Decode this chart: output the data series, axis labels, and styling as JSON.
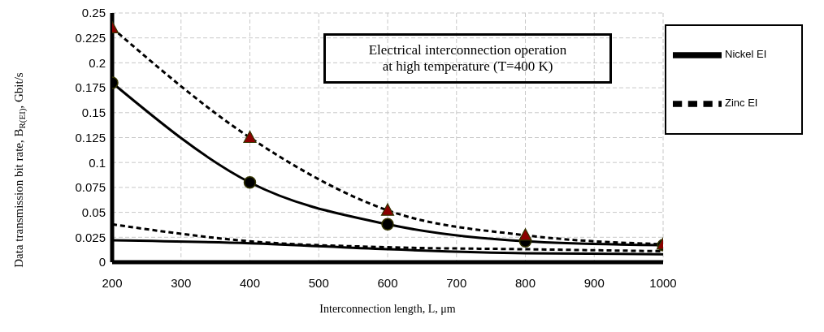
{
  "chart_data": {
    "type": "line",
    "xlabel": "Interconnection length, L, μm",
    "ylabel": "Data transmission bit rate, B$_{R(EI)}$, Gbit/s",
    "x": [
      200,
      400,
      600,
      800,
      1000
    ],
    "series": [
      {
        "name": "Nickel EI",
        "color": "#000000",
        "values": [
          0.18,
          0.08,
          0.038,
          0.021,
          0.017
        ],
        "marker": "circle",
        "line_style": "solid"
      },
      {
        "name": "Zinc EI",
        "color": "#000000",
        "values": [
          0.235,
          0.125,
          0.052,
          0.027,
          0.018
        ],
        "marker": "triangle",
        "line_style": "dashed"
      },
      {
        "color": "#000000",
        "values": [
          0.022,
          0.019,
          0.013,
          0.009,
          0.008
        ],
        "marker": "none",
        "line_style": "solid"
      },
      {
        "color": "#000000",
        "values": [
          0.038,
          0.021,
          0.015,
          0.013,
          0.011
        ],
        "marker": "none",
        "line_style": "dashed"
      }
    ],
    "xlim": [
      200,
      1000
    ],
    "xticks": [
      200,
      300,
      400,
      500,
      600,
      700,
      800,
      900,
      1000
    ],
    "ylim": [
      0,
      0.25
    ],
    "yticks": [
      0,
      0.025,
      0.05,
      0.075,
      0.1,
      0.125,
      0.15,
      0.175,
      0.2,
      0.225,
      0.25
    ],
    "grid": true,
    "legend": "top right",
    "annotations": [
      "Electrical interconnection operation\nat high temperature (T=400 K)"
    ]
  }
}
